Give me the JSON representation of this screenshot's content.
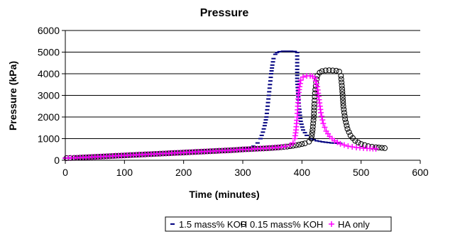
{
  "chart_data": {
    "type": "scatter",
    "title": "Pressure",
    "xlabel": "Time (minutes)",
    "ylabel": "Pressure (kPa)",
    "xlim": [
      0,
      600
    ],
    "ylim": [
      0,
      6000
    ],
    "xticks": [
      0,
      100,
      200,
      300,
      400,
      500,
      600
    ],
    "yticks": [
      0,
      1000,
      2000,
      3000,
      4000,
      5000,
      6000
    ],
    "grid": "horizontal",
    "legend_position": "bottom",
    "series": [
      {
        "name": "1.5 mass% KOH",
        "marker": "dash",
        "color": "#000080",
        "points": [
          [
            0,
            100
          ],
          [
            15,
            110
          ],
          [
            30,
            130
          ],
          [
            45,
            150
          ],
          [
            60,
            170
          ],
          [
            75,
            190
          ],
          [
            90,
            210
          ],
          [
            105,
            230
          ],
          [
            120,
            250
          ],
          [
            135,
            270
          ],
          [
            150,
            290
          ],
          [
            165,
            310
          ],
          [
            180,
            330
          ],
          [
            195,
            350
          ],
          [
            210,
            370
          ],
          [
            225,
            390
          ],
          [
            240,
            410
          ],
          [
            255,
            430
          ],
          [
            270,
            450
          ],
          [
            285,
            470
          ],
          [
            300,
            500
          ],
          [
            310,
            550
          ],
          [
            318,
            650
          ],
          [
            325,
            800
          ],
          [
            330,
            1000
          ],
          [
            334,
            1300
          ],
          [
            337,
            1600
          ],
          [
            340,
            2000
          ],
          [
            342,
            2500
          ],
          [
            344,
            3000
          ],
          [
            346,
            3500
          ],
          [
            348,
            4000
          ],
          [
            350,
            4400
          ],
          [
            352,
            4700
          ],
          [
            355,
            4900
          ],
          [
            358,
            4980
          ],
          [
            362,
            5020
          ],
          [
            368,
            5040
          ],
          [
            375,
            5040
          ],
          [
            382,
            5040
          ],
          [
            388,
            5030
          ],
          [
            392,
            4980
          ],
          [
            392,
            4200
          ],
          [
            392,
            3650
          ],
          [
            395,
            2500
          ],
          [
            398,
            1800
          ],
          [
            402,
            1400
          ],
          [
            408,
            1150
          ],
          [
            415,
            1000
          ],
          [
            425,
            900
          ],
          [
            435,
            850
          ],
          [
            450,
            800
          ],
          [
            465,
            780
          ]
        ]
      },
      {
        "name": "0.15 mass% KOH",
        "marker": "circle",
        "color": "#000000",
        "points": [
          [
            2,
            100
          ],
          [
            15,
            110
          ],
          [
            30,
            130
          ],
          [
            45,
            150
          ],
          [
            60,
            170
          ],
          [
            75,
            190
          ],
          [
            90,
            210
          ],
          [
            105,
            230
          ],
          [
            120,
            250
          ],
          [
            135,
            270
          ],
          [
            150,
            290
          ],
          [
            165,
            310
          ],
          [
            180,
            330
          ],
          [
            195,
            350
          ],
          [
            210,
            370
          ],
          [
            225,
            390
          ],
          [
            240,
            410
          ],
          [
            255,
            430
          ],
          [
            270,
            450
          ],
          [
            285,
            470
          ],
          [
            300,
            500
          ],
          [
            315,
            520
          ],
          [
            330,
            540
          ],
          [
            345,
            560
          ],
          [
            360,
            590
          ],
          [
            375,
            630
          ],
          [
            385,
            670
          ],
          [
            395,
            720
          ],
          [
            405,
            780
          ],
          [
            412,
            860
          ],
          [
            416,
            1000
          ],
          [
            418,
            1400
          ],
          [
            420,
            2000
          ],
          [
            421,
            2600
          ],
          [
            422,
            3100
          ],
          [
            424,
            3600
          ],
          [
            426,
            3900
          ],
          [
            430,
            4050
          ],
          [
            434,
            4120
          ],
          [
            440,
            4150
          ],
          [
            446,
            4160
          ],
          [
            452,
            4150
          ],
          [
            458,
            4140
          ],
          [
            463,
            4100
          ],
          [
            466,
            3900
          ],
          [
            468,
            3300
          ],
          [
            470,
            2500
          ],
          [
            473,
            1900
          ],
          [
            477,
            1450
          ],
          [
            482,
            1150
          ],
          [
            490,
            900
          ],
          [
            500,
            750
          ],
          [
            512,
            650
          ],
          [
            525,
            600
          ],
          [
            540,
            560
          ]
        ]
      },
      {
        "name": "HA only",
        "marker": "plus",
        "color": "#ff00ff",
        "points": [
          [
            0,
            100
          ],
          [
            15,
            110
          ],
          [
            30,
            130
          ],
          [
            45,
            150
          ],
          [
            60,
            170
          ],
          [
            75,
            190
          ],
          [
            90,
            210
          ],
          [
            105,
            230
          ],
          [
            120,
            250
          ],
          [
            135,
            270
          ],
          [
            150,
            290
          ],
          [
            165,
            310
          ],
          [
            180,
            330
          ],
          [
            195,
            350
          ],
          [
            210,
            370
          ],
          [
            225,
            390
          ],
          [
            240,
            410
          ],
          [
            255,
            430
          ],
          [
            270,
            450
          ],
          [
            285,
            470
          ],
          [
            300,
            500
          ],
          [
            315,
            520
          ],
          [
            330,
            545
          ],
          [
            345,
            570
          ],
          [
            360,
            600
          ],
          [
            372,
            640
          ],
          [
            380,
            700
          ],
          [
            385,
            800
          ],
          [
            388,
            1000
          ],
          [
            390,
            1400
          ],
          [
            392,
            2000
          ],
          [
            393,
            2500
          ],
          [
            394,
            3000
          ],
          [
            396,
            3400
          ],
          [
            398,
            3700
          ],
          [
            402,
            3850
          ],
          [
            408,
            3900
          ],
          [
            414,
            3900
          ],
          [
            418,
            3880
          ],
          [
            422,
            3800
          ],
          [
            426,
            3400
          ],
          [
            429,
            2800
          ],
          [
            432,
            2200
          ],
          [
            436,
            1700
          ],
          [
            441,
            1350
          ],
          [
            447,
            1100
          ],
          [
            455,
            900
          ],
          [
            465,
            760
          ],
          [
            478,
            650
          ],
          [
            492,
            590
          ],
          [
            510,
            550
          ],
          [
            525,
            530
          ]
        ]
      }
    ]
  }
}
